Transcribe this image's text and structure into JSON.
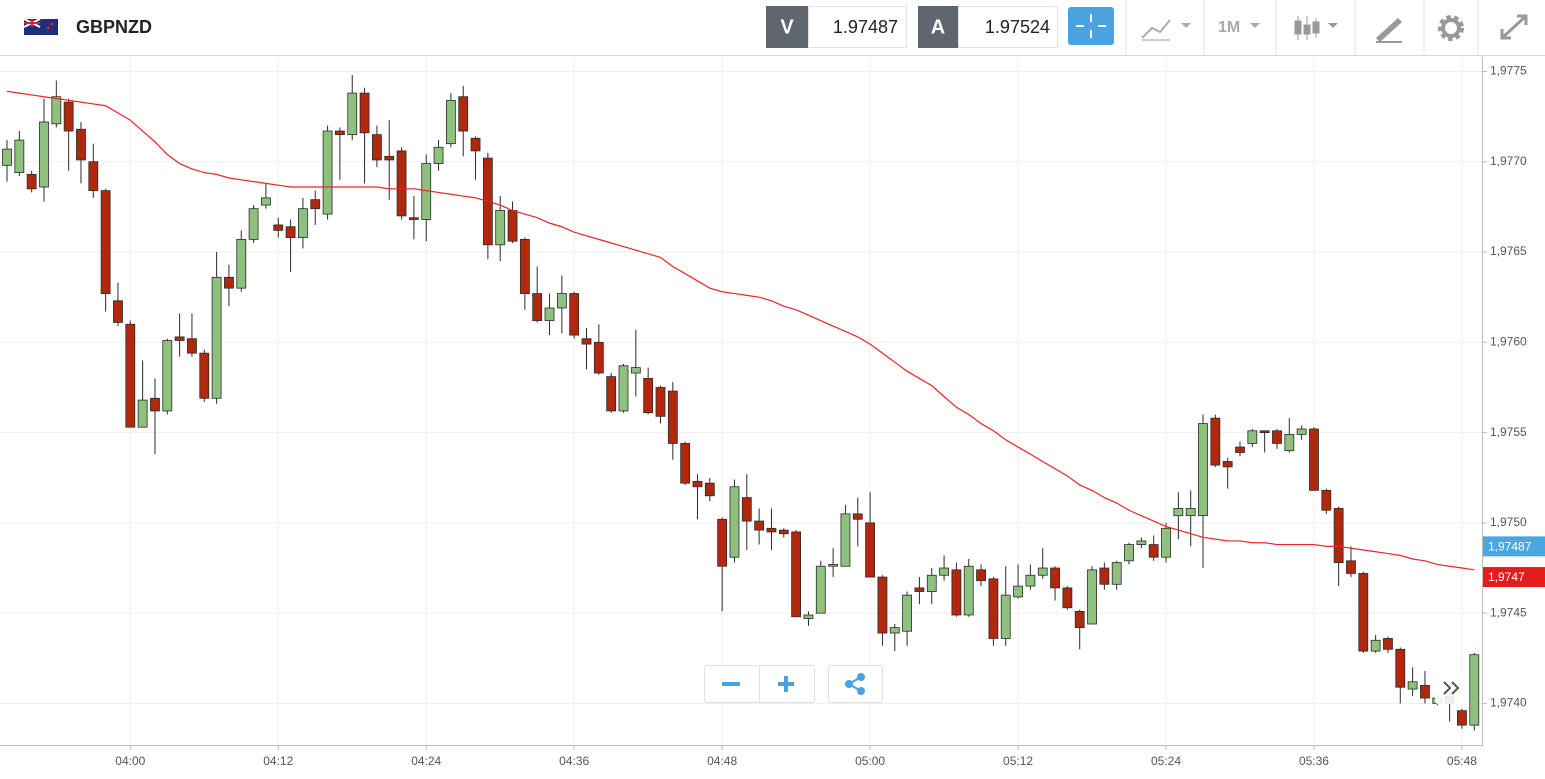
{
  "header": {
    "symbol": "GBPNZD",
    "bid_label": "V",
    "bid": 1.97487,
    "ask_label": "A",
    "ask": 1.97524,
    "timeframe": "1M"
  },
  "chart_data": {
    "type": "candlestick",
    "categories": [
      null,
      null,
      null,
      null,
      null,
      null,
      null,
      null,
      null,
      null,
      "04:00",
      null,
      null,
      null,
      null,
      null,
      null,
      null,
      null,
      null,
      null,
      null,
      "04:12",
      null,
      null,
      null,
      null,
      null,
      null,
      null,
      null,
      null,
      null,
      null,
      "04:24",
      null,
      null,
      null,
      null,
      null,
      null,
      null,
      null,
      null,
      null,
      null,
      "04:36",
      null,
      null,
      null,
      null,
      null,
      null,
      null,
      null,
      null,
      null,
      null,
      "04:48",
      null,
      null,
      null,
      null,
      null,
      null,
      null,
      null,
      null,
      null,
      null,
      "05:00",
      null,
      null,
      null,
      null,
      null,
      null,
      null,
      null,
      null,
      null,
      null,
      "05:12",
      null,
      null,
      null,
      null,
      null,
      null,
      null,
      null,
      null,
      null,
      null,
      "05:24",
      null,
      null,
      null,
      null,
      null,
      null,
      null,
      null,
      null,
      null,
      null,
      "05:36",
      null,
      null,
      null,
      null,
      null,
      null,
      null,
      null,
      null,
      null,
      null,
      "05:48",
      null
    ],
    "open": [
      1.97698,
      1.97694,
      1.97693,
      1.97686,
      1.97721,
      1.97733,
      1.97718,
      1.977,
      1.97684,
      1.97623,
      1.9761,
      1.97553,
      1.97569,
      1.97562,
      1.97603,
      1.97602,
      1.97594,
      1.97569,
      1.97636,
      1.9763,
      1.97657,
      1.97676,
      1.97665,
      1.97664,
      1.97658,
      1.97679,
      1.97671,
      1.97717,
      1.97715,
      1.97738,
      1.97715,
      1.97703,
      1.97706,
      1.97669,
      1.97668,
      1.97699,
      1.9771,
      1.97736,
      1.97713,
      1.97702,
      1.97654,
      1.97673,
      1.97657,
      1.97627,
      1.97612,
      1.97619,
      1.97627,
      1.97602,
      1.976,
      1.97581,
      1.97562,
      1.97583,
      1.9758,
      1.97575,
      1.97573,
      1.97544,
      1.97523,
      1.97522,
      1.97502,
      1.97481,
      1.97514,
      1.97501,
      1.97497,
      1.97496,
      1.97495,
      1.97447,
      1.9745,
      1.97476,
      1.97476,
      1.97505,
      1.975,
      1.9747,
      1.97439,
      1.9744,
      1.97464,
      1.97462,
      1.97471,
      1.97474,
      1.97449,
      1.97474,
      1.97469,
      1.97436,
      1.97459,
      1.97465,
      1.97471,
      1.97475,
      1.97464,
      1.97451,
      1.97444,
      1.97475,
      1.97466,
      1.97479,
      1.97488,
      1.97488,
      1.97481,
      1.97504,
      1.97504,
      1.97504,
      1.97558,
      1.97534,
      1.97542,
      1.97544,
      1.97551,
      1.97551,
      1.9754,
      1.97549,
      1.97552,
      1.97518,
      1.97508,
      1.97479,
      1.97472,
      1.97429,
      1.97436,
      1.9743,
      1.97408,
      1.9741,
      1.974,
      1.97404,
      1.97396,
      1.97388
    ],
    "high": [
      1.97712,
      1.97717,
      1.97695,
      1.97735,
      1.97745,
      1.97735,
      1.97722,
      1.9771,
      1.97685,
      1.97633,
      1.97612,
      1.9759,
      1.9758,
      1.97602,
      1.97616,
      1.97616,
      1.97596,
      1.9765,
      1.97643,
      1.97662,
      1.97676,
      1.97688,
      1.97669,
      1.97668,
      1.9768,
      1.97684,
      1.9772,
      1.97719,
      1.97748,
      1.97741,
      1.9772,
      1.97723,
      1.97708,
      1.97681,
      1.97704,
      1.97712,
      1.97738,
      1.97742,
      1.97714,
      1.97705,
      1.97681,
      1.97678,
      1.97658,
      1.97642,
      1.97627,
      1.97637,
      1.97628,
      1.97608,
      1.9761,
      1.97583,
      1.97588,
      1.97607,
      1.97586,
      1.97576,
      1.97578,
      1.97545,
      1.97527,
      1.97525,
      1.97503,
      1.97524,
      1.97527,
      1.97508,
      1.97508,
      1.97497,
      1.97496,
      1.97451,
      1.97479,
      1.97486,
      1.9751,
      1.97514,
      1.97517,
      1.97471,
      1.97444,
      1.97462,
      1.9747,
      1.97475,
      1.97482,
      1.97478,
      1.9748,
      1.97477,
      1.9747,
      1.97476,
      1.97477,
      1.97477,
      1.97486,
      1.97476,
      1.97465,
      1.97452,
      1.97476,
      1.97478,
      1.97479,
      1.97489,
      1.97492,
      1.97493,
      1.975,
      1.97517,
      1.97518,
      1.9756,
      1.9756,
      1.97536,
      1.97545,
      1.97552,
      1.97551,
      1.97552,
      1.97558,
      1.97554,
      1.97553,
      1.97519,
      1.97509,
      1.97487,
      1.97473,
      1.97438,
      1.97437,
      1.97431,
      1.9742,
      1.97418,
      1.97406,
      1.97406,
      1.97397,
      1.97428
    ],
    "low": [
      1.97689,
      1.97692,
      1.97683,
      1.97678,
      1.97719,
      1.97695,
      1.97688,
      1.9768,
      1.97617,
      1.97609,
      1.97553,
      1.97553,
      1.97538,
      1.9756,
      1.97592,
      1.97592,
      1.97567,
      1.97566,
      1.9762,
      1.97628,
      1.97655,
      1.97674,
      1.97658,
      1.97639,
      1.97652,
      1.97665,
      1.97668,
      1.9769,
      1.97712,
      1.97688,
      1.97697,
      1.97679,
      1.97668,
      1.97657,
      1.97656,
      1.97695,
      1.97708,
      1.97703,
      1.9769,
      1.97646,
      1.97645,
      1.97655,
      1.97618,
      1.97611,
      1.97604,
      1.97605,
      1.97602,
      1.97585,
      1.97582,
      1.97561,
      1.97561,
      1.9757,
      1.9756,
      1.97555,
      1.97535,
      1.97521,
      1.97502,
      1.97512,
      1.97451,
      1.97478,
      1.97485,
      1.97488,
      1.97485,
      1.97492,
      1.97448,
      1.97443,
      1.9745,
      1.9747,
      1.97476,
      1.97487,
      1.9747,
      1.97432,
      1.97429,
      1.97432,
      1.97455,
      1.97455,
      1.97468,
      1.97448,
      1.97448,
      1.97465,
      1.97432,
      1.97432,
      1.97458,
      1.97463,
      1.97469,
      1.97457,
      1.97452,
      1.9743,
      1.97444,
      1.97463,
      1.97463,
      1.97477,
      1.97486,
      1.97479,
      1.97478,
      1.97491,
      1.97487,
      1.97475,
      1.97531,
      1.97519,
      1.97537,
      1.97542,
      1.97539,
      1.97541,
      1.97539,
      1.97546,
      1.97518,
      1.97505,
      1.97465,
      1.9747,
      1.97428,
      1.97428,
      1.97428,
      1.974,
      1.97404,
      1.974,
      1.97399,
      1.9739,
      1.97386,
      1.97385
    ],
    "close": [
      1.97707,
      1.97712,
      1.97685,
      1.97722,
      1.97736,
      1.97717,
      1.97701,
      1.97684,
      1.97627,
      1.97611,
      1.97553,
      1.97568,
      1.97562,
      1.97601,
      1.97601,
      1.97594,
      1.97569,
      1.97636,
      1.9763,
      1.97657,
      1.97674,
      1.9768,
      1.97662,
      1.97658,
      1.97674,
      1.97674,
      1.97717,
      1.97715,
      1.97738,
      1.97716,
      1.97701,
      1.97701,
      1.9767,
      1.97668,
      1.97699,
      1.97708,
      1.97734,
      1.97717,
      1.97706,
      1.97654,
      1.97673,
      1.97656,
      1.97627,
      1.97612,
      1.97619,
      1.97627,
      1.97604,
      1.97599,
      1.97583,
      1.97562,
      1.97587,
      1.97586,
      1.97561,
      1.97559,
      1.97544,
      1.97522,
      1.9752,
      1.97515,
      1.97476,
      1.9752,
      1.97501,
      1.97496,
      1.97495,
      1.97494,
      1.97448,
      1.97449,
      1.97476,
      1.97477,
      1.97505,
      1.97502,
      1.9747,
      1.97439,
      1.97442,
      1.9746,
      1.97462,
      1.97471,
      1.97475,
      1.97449,
      1.97476,
      1.97468,
      1.97436,
      1.9746,
      1.97465,
      1.97471,
      1.97475,
      1.97464,
      1.97453,
      1.97442,
      1.97474,
      1.97466,
      1.97478,
      1.97488,
      1.9749,
      1.97481,
      1.97497,
      1.97508,
      1.97508,
      1.97555,
      1.97532,
      1.97531,
      1.97539,
      1.97551,
      1.9755,
      1.97544,
      1.97549,
      1.97552,
      1.97518,
      1.97507,
      1.97478,
      1.97472,
      1.97429,
      1.97435,
      1.9743,
      1.97409,
      1.97412,
      1.97403,
      1.97403,
      1.974,
      1.97388,
      1.97427
    ],
    "up_color": "#8fc17e",
    "down_color": "#b0290f",
    "outline_color": "#2b2b2b",
    "overlay": {
      "color": "#e8262a",
      "values": [
        1.97739,
        1.97738,
        1.97737,
        1.97736,
        1.97735,
        1.97734,
        1.97733,
        1.97732,
        1.97731,
        1.97727,
        1.97723,
        1.97717,
        1.97711,
        1.97704,
        1.97699,
        1.97696,
        1.97694,
        1.97693,
        1.97691,
        1.9769,
        1.97689,
        1.97688,
        1.97687,
        1.97686,
        1.97686,
        1.97686,
        1.97686,
        1.97686,
        1.97686,
        1.97686,
        1.97686,
        1.97685,
        1.97685,
        1.97685,
        1.97684,
        1.97683,
        1.97682,
        1.97681,
        1.9768,
        1.97678,
        1.97676,
        1.97673,
        1.97671,
        1.97669,
        1.97666,
        1.97664,
        1.97661,
        1.97659,
        1.97657,
        1.97655,
        1.97653,
        1.97651,
        1.97649,
        1.97647,
        1.97642,
        1.97638,
        1.97634,
        1.9763,
        1.97628,
        1.97627,
        1.97626,
        1.97625,
        1.97623,
        1.9762,
        1.97618,
        1.97615,
        1.97612,
        1.97609,
        1.97606,
        1.97603,
        1.97599,
        1.97594,
        1.97589,
        1.97584,
        1.9758,
        1.97576,
        1.9757,
        1.97564,
        1.9756,
        1.97555,
        1.97551,
        1.97546,
        1.97542,
        1.97538,
        1.97534,
        1.9753,
        1.97526,
        1.97521,
        1.97518,
        1.97514,
        1.97511,
        1.97507,
        1.97504,
        1.97501,
        1.97498,
        1.97496,
        1.97494,
        1.97492,
        1.97491,
        1.9749,
        1.9749,
        1.97489,
        1.97489,
        1.97488,
        1.97488,
        1.97488,
        1.97488,
        1.97487,
        1.97487,
        1.97486,
        1.97485,
        1.97484,
        1.97483,
        1.97482,
        1.9748,
        1.97479,
        1.97477,
        1.97476,
        1.97475,
        1.97474
      ]
    },
    "ylim": [
      1.97377,
      1.97758
    ],
    "yticks": [
      {
        "value": 1.974,
        "label": "1,9740"
      },
      {
        "value": 1.9745,
        "label": "1,9745"
      },
      {
        "value": 1.975,
        "label": "1,9750"
      },
      {
        "value": 1.9755,
        "label": "1,9755"
      },
      {
        "value": 1.976,
        "label": "1,9760"
      },
      {
        "value": 1.9765,
        "label": "1,9765"
      },
      {
        "value": 1.977,
        "label": "1,9770"
      },
      {
        "value": 1.9775,
        "label": "1,9775"
      }
    ],
    "price_markers": [
      {
        "value": 1.97487,
        "label": "1,97487",
        "color": "#4aa8e0"
      },
      {
        "value": 1.9747,
        "label": "1,9747",
        "color": "#e31c1c"
      }
    ],
    "grid": true
  }
}
